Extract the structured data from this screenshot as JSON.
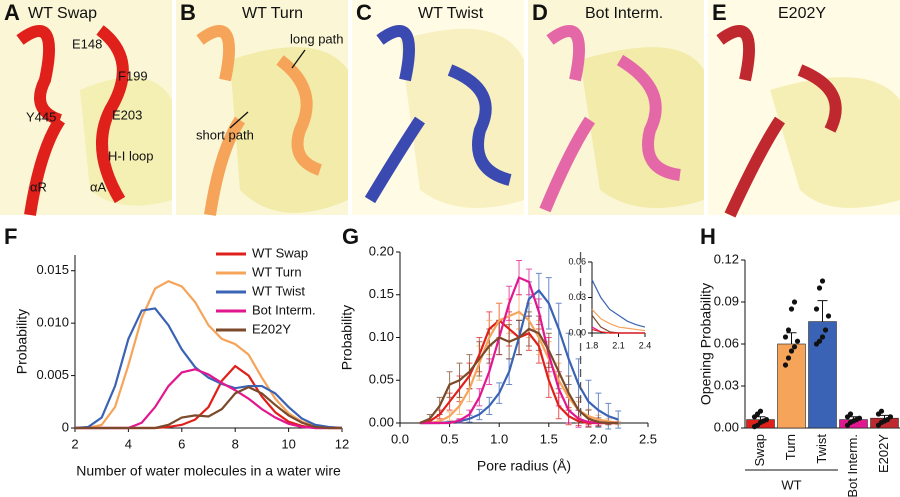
{
  "panels": [
    {
      "letter": "A",
      "title": "WT Swap"
    },
    {
      "letter": "B",
      "title": "WT Turn"
    },
    {
      "letter": "C",
      "title": "WT Twist"
    },
    {
      "letter": "D",
      "title": "Bot Interm."
    },
    {
      "letter": "E",
      "title": "E202Y"
    }
  ],
  "annotations": [
    "E148",
    "F199",
    "Y445",
    "E203",
    "H-I loop",
    "αR",
    "αA",
    "long path",
    "short path"
  ],
  "chart_data": [
    {
      "type": "line",
      "panel": "F",
      "xlabel": "Number of water molecules in a water wire",
      "ylabel": "Probability",
      "xlim": [
        2,
        12
      ],
      "xticks": [
        2,
        4,
        6,
        8,
        10,
        12
      ],
      "ylim": [
        0,
        0.0165
      ],
      "yticks": [
        0,
        0.005,
        {
          "value": 0.01,
          "label": "0.010"
        },
        0.015
      ],
      "legend": "upper right",
      "x": [
        2,
        2.5,
        3,
        3.5,
        4,
        4.5,
        5,
        5.5,
        6,
        6.5,
        7,
        7.5,
        8,
        8.5,
        9,
        9.5,
        10,
        10.5,
        11,
        11.5,
        12
      ],
      "series": [
        {
          "name": "WT Swap",
          "color": "#e0201b",
          "values": [
            0,
            0,
            0,
            0,
            0,
            0,
            0,
            0.0001,
            0.0003,
            0.0008,
            0.002,
            0.0045,
            0.0059,
            0.005,
            0.003,
            0.0015,
            0.0006,
            0.0002,
            0,
            0,
            0
          ]
        },
        {
          "name": "WT Turn",
          "color": "#f5a45a",
          "values": [
            0,
            0,
            0.0003,
            0.002,
            0.006,
            0.0105,
            0.0133,
            0.014,
            0.0135,
            0.012,
            0.0098,
            0.0085,
            0.008,
            0.007,
            0.0048,
            0.0028,
            0.0014,
            0.0006,
            0.0002,
            0,
            0
          ]
        },
        {
          "name": "WT Twist",
          "color": "#3a63b5",
          "values": [
            0,
            0.0001,
            0.001,
            0.004,
            0.0085,
            0.0112,
            0.0114,
            0.0098,
            0.0075,
            0.0058,
            0.0048,
            0.0042,
            0.0038,
            0.004,
            0.004,
            0.0033,
            0.002,
            0.0009,
            0.0003,
            0.0001,
            0
          ]
        },
        {
          "name": "Bot Interm.",
          "color": "#e2168f",
          "values": [
            0,
            0,
            0,
            0,
            0,
            0.0005,
            0.002,
            0.004,
            0.0053,
            0.0056,
            0.0051,
            0.0043,
            0.0036,
            0.0028,
            0.0018,
            0.001,
            0.0004,
            0.0001,
            0,
            0,
            0
          ]
        },
        {
          "name": "E202Y",
          "color": "#7b4a2a",
          "values": [
            0,
            0,
            0,
            0,
            0,
            0,
            0,
            0.0003,
            0.001,
            0.0012,
            0.0011,
            0.0018,
            0.0033,
            0.0039,
            0.0033,
            0.0022,
            0.0012,
            0.0005,
            0.0001,
            0,
            0
          ]
        }
      ]
    },
    {
      "type": "errorline",
      "panel": "G",
      "xlabel": "Pore radius (Å)",
      "ylabel": "Probability",
      "vline": 1.82,
      "xlim": [
        0,
        2.5
      ],
      "xticks": [
        {
          "value": 0,
          "label": "0.0"
        },
        0.5,
        {
          "value": 1,
          "label": "1.0"
        },
        1.5,
        {
          "value": 2,
          "label": "2.0"
        },
        2.5
      ],
      "ylim": [
        0,
        0.2
      ],
      "yticks": [
        {
          "value": 0,
          "label": "0.00"
        },
        0.05,
        {
          "value": 0.1,
          "label": "0.10"
        },
        0.15,
        {
          "value": 0.2,
          "label": "0.20"
        }
      ],
      "x": [
        0.2,
        0.3,
        0.4,
        0.5,
        0.6,
        0.7,
        0.8,
        0.9,
        1.0,
        1.1,
        1.2,
        1.3,
        1.4,
        1.5,
        1.6,
        1.7,
        1.8,
        1.9,
        2.0,
        2.1,
        2.2
      ],
      "series": [
        {
          "color": "#e0201b",
          "values": [
            0,
            0.002,
            0.01,
            0.025,
            0.04,
            0.055,
            0.08,
            0.11,
            0.12,
            0.11,
            0.1,
            0.105,
            0.09,
            0.05,
            0.02,
            0.008,
            0.002,
            0,
            0,
            0,
            0
          ],
          "errors": [
            0,
            0.002,
            0.005,
            0.01,
            0.015,
            0.015,
            0.02,
            0.02,
            0.02,
            0.02,
            0.02,
            0.02,
            0.02,
            0.02,
            0.015,
            0.01,
            0.005,
            0.002,
            0,
            0,
            0
          ]
        },
        {
          "color": "#f5a45a",
          "values": [
            0,
            0,
            0.002,
            0.008,
            0.02,
            0.04,
            0.07,
            0.1,
            0.12,
            0.125,
            0.13,
            0.12,
            0.1,
            0.075,
            0.05,
            0.03,
            0.015,
            0.008,
            0.004,
            0.002,
            0
          ],
          "errors": [
            0,
            0,
            0.002,
            0.005,
            0.01,
            0.015,
            0.02,
            0.02,
            0.02,
            0.02,
            0.02,
            0.02,
            0.02,
            0.02,
            0.02,
            0.015,
            0.01,
            0.008,
            0.005,
            0.003,
            0.002
          ]
        },
        {
          "color": "#3a63b5",
          "values": [
            0,
            0,
            0,
            0.001,
            0.002,
            0.005,
            0.01,
            0.02,
            0.035,
            0.06,
            0.1,
            0.145,
            0.155,
            0.14,
            0.11,
            0.075,
            0.045,
            0.025,
            0.015,
            0.008,
            0.004
          ],
          "errors": [
            0,
            0,
            0,
            0,
            0.002,
            0.004,
            0.006,
            0.01,
            0.012,
            0.015,
            0.02,
            0.02,
            0.02,
            0.03,
            0.03,
            0.03,
            0.03,
            0.025,
            0.02,
            0.015,
            0.01
          ]
        },
        {
          "color": "#e2168f",
          "values": [
            0,
            0,
            0,
            0,
            0.003,
            0.01,
            0.03,
            0.06,
            0.1,
            0.14,
            0.17,
            0.165,
            0.13,
            0.08,
            0.04,
            0.015,
            0.005,
            0.001,
            0,
            0,
            0
          ],
          "errors": [
            0,
            0,
            0,
            0,
            0.002,
            0.005,
            0.01,
            0.015,
            0.02,
            0.02,
            0.02,
            0.015,
            0.015,
            0.02,
            0.02,
            0.015,
            0.01,
            0.005,
            0.003,
            0.001,
            0
          ]
        },
        {
          "color": "#7b4a2a",
          "values": [
            0,
            0.005,
            0.02,
            0.045,
            0.05,
            0.06,
            0.075,
            0.09,
            0.1,
            0.095,
            0.1,
            0.11,
            0.105,
            0.085,
            0.06,
            0.035,
            0.015,
            0.005,
            0.001,
            0,
            0
          ],
          "errors": [
            0,
            0.005,
            0.01,
            0.015,
            0.02,
            0.02,
            0.02,
            0.02,
            0.02,
            0.02,
            0.02,
            0.02,
            0.02,
            0.02,
            0.02,
            0.02,
            0.015,
            0.01,
            0.005,
            0.002,
            0
          ]
        }
      ]
    },
    {
      "type": "line",
      "xlim": [
        1.8,
        2.4
      ],
      "xticks": [
        1.8,
        2.1,
        2.4
      ],
      "ylim": [
        0,
        0.06
      ],
      "yticks": [
        {
          "value": 0,
          "label": "0.00"
        },
        0.03,
        0.06
      ],
      "x": [
        1.8,
        1.9,
        2.0,
        2.1,
        2.2,
        2.3,
        2.4
      ],
      "series": [
        {
          "color": "#3a63b5",
          "values": [
            0.045,
            0.03,
            0.02,
            0.015,
            0.01,
            0.007,
            0.005
          ]
        },
        {
          "color": "#f5a45a",
          "values": [
            0.02,
            0.012,
            0.008,
            0.005,
            0.004,
            0.003,
            0.002
          ]
        },
        {
          "color": "#7b4a2a",
          "values": [
            0.015,
            0.005,
            0.001,
            0,
            0,
            0,
            0
          ]
        },
        {
          "color": "#e2168f",
          "values": [
            0.005,
            0.001,
            0,
            0,
            0,
            0,
            0
          ]
        },
        {
          "color": "#e0201b",
          "values": [
            0.003,
            0.001,
            0,
            0,
            0,
            0,
            0
          ]
        }
      ]
    },
    {
      "type": "bar",
      "panel": "H",
      "ylabel": "Opening Probability",
      "group": "WT",
      "categories": [
        "Swap",
        "Turn",
        "Twist",
        "Bot Interm.",
        "E202Y"
      ],
      "values": [
        0.006,
        0.06,
        0.076,
        0.006,
        0.007
      ],
      "errors": [
        0.002,
        0.008,
        0.015,
        0.002,
        0.002
      ],
      "colors": [
        "#e0201b",
        "#f5a45a",
        "#3a63b5",
        "#e2168f",
        "#c0282f"
      ],
      "points": [
        [
          0.001,
          0.002,
          0.004,
          0.005,
          0.006,
          0.008,
          0.01,
          0.012
        ],
        [
          0.045,
          0.05,
          0.055,
          0.058,
          0.062,
          0.065,
          0.07,
          0.085,
          0.09
        ],
        [
          0.06,
          0.062,
          0.065,
          0.07,
          0.08,
          0.085,
          0.1,
          0.105
        ],
        [
          0.002,
          0.004,
          0.005,
          0.006,
          0.007,
          0.008,
          0.01
        ],
        [
          0.002,
          0.004,
          0.005,
          0.006,
          0.008,
          0.01,
          0.012
        ]
      ],
      "ylim": [
        0,
        0.12
      ],
      "yticks": [
        {
          "value": 0,
          "label": "0.00"
        },
        0.03,
        0.06,
        0.09,
        0.12
      ]
    }
  ]
}
